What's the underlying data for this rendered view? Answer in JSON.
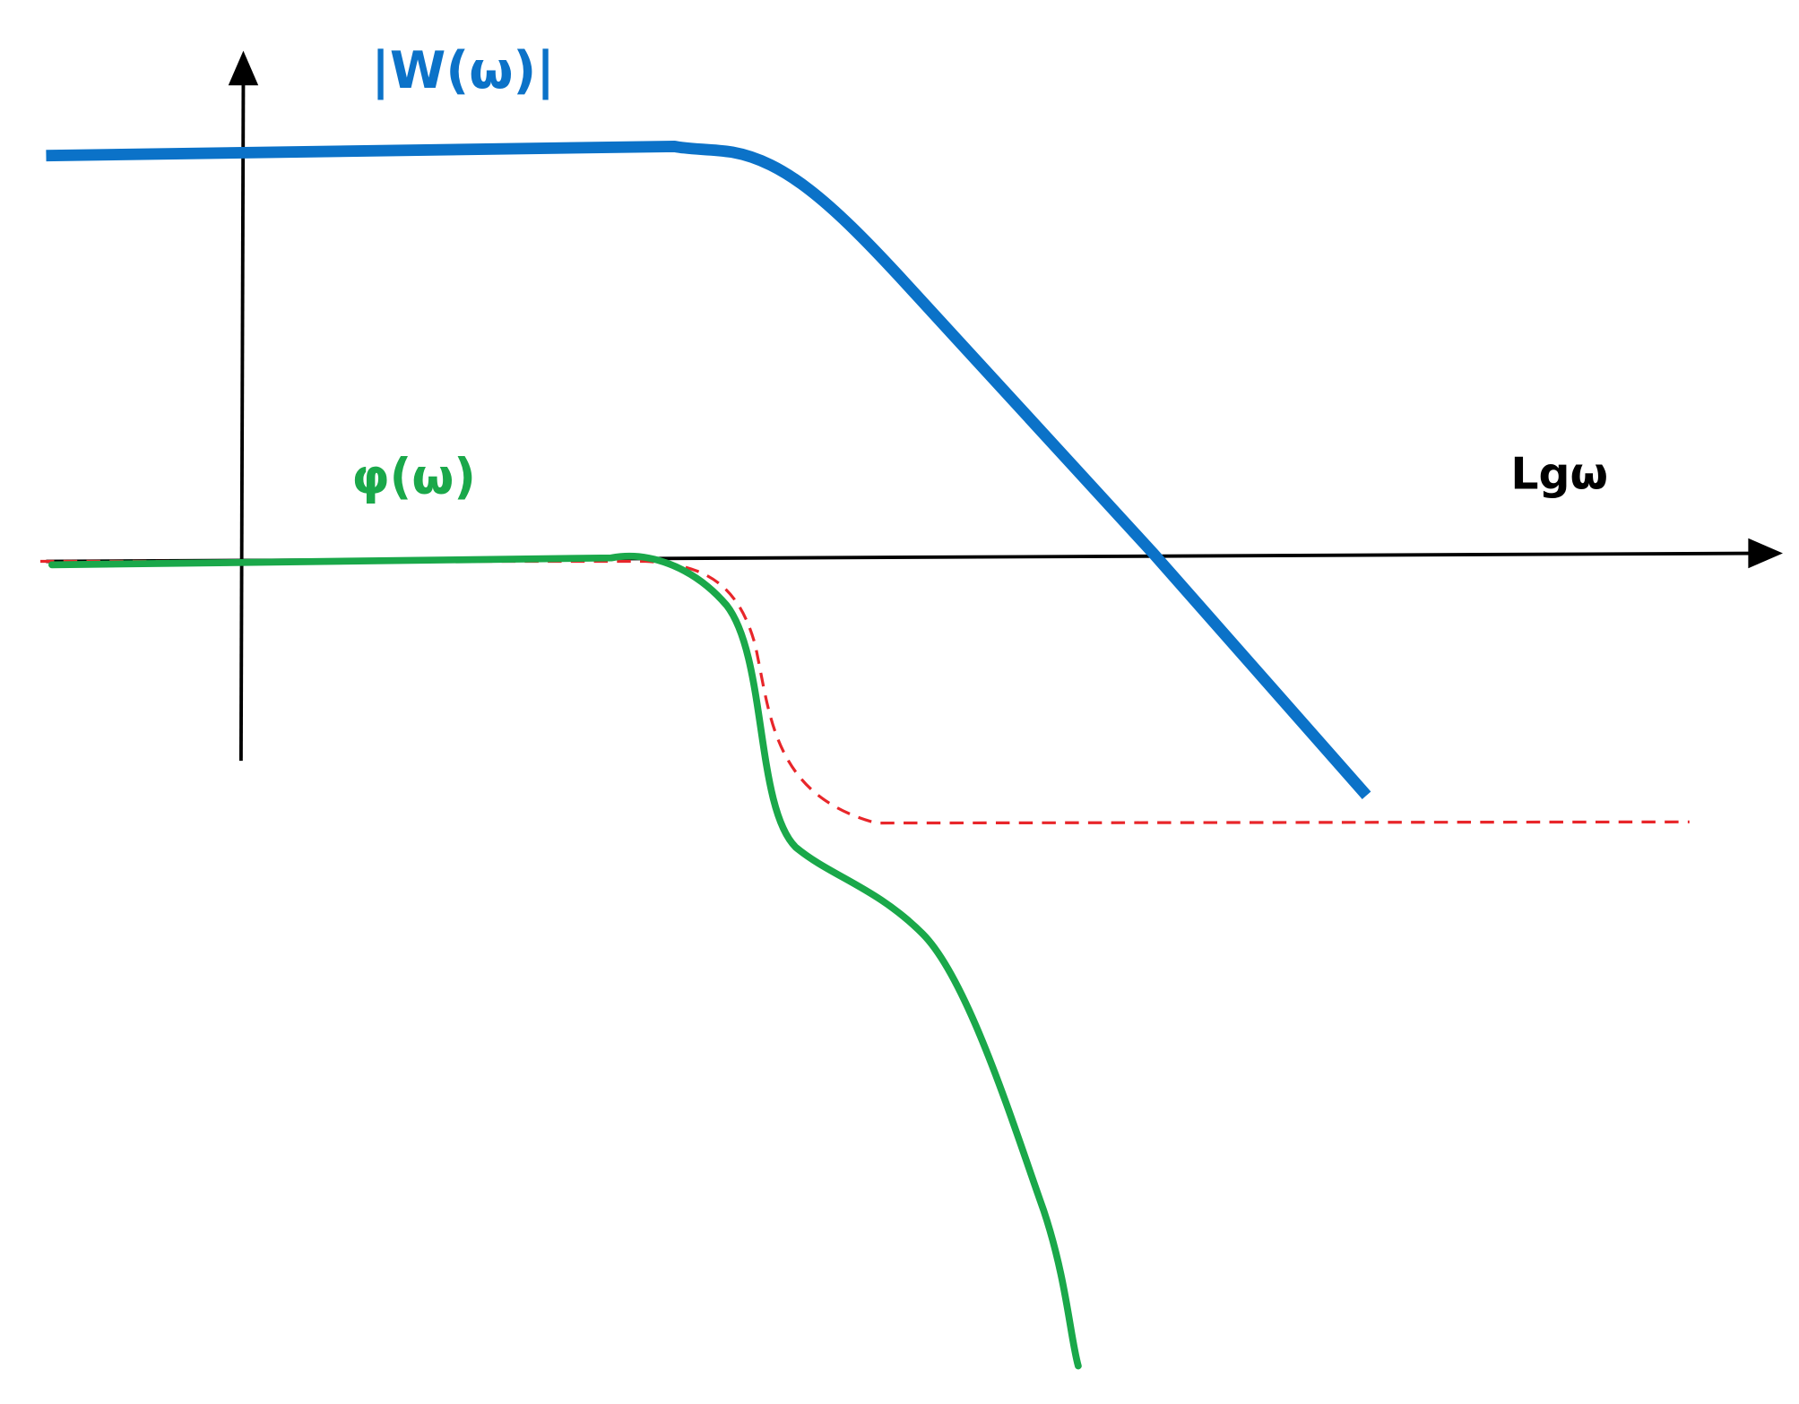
{
  "labels": {
    "magnitude": "|W(ω)|",
    "phase": "φ(ω)",
    "x_axis": "Lgω"
  }
}
